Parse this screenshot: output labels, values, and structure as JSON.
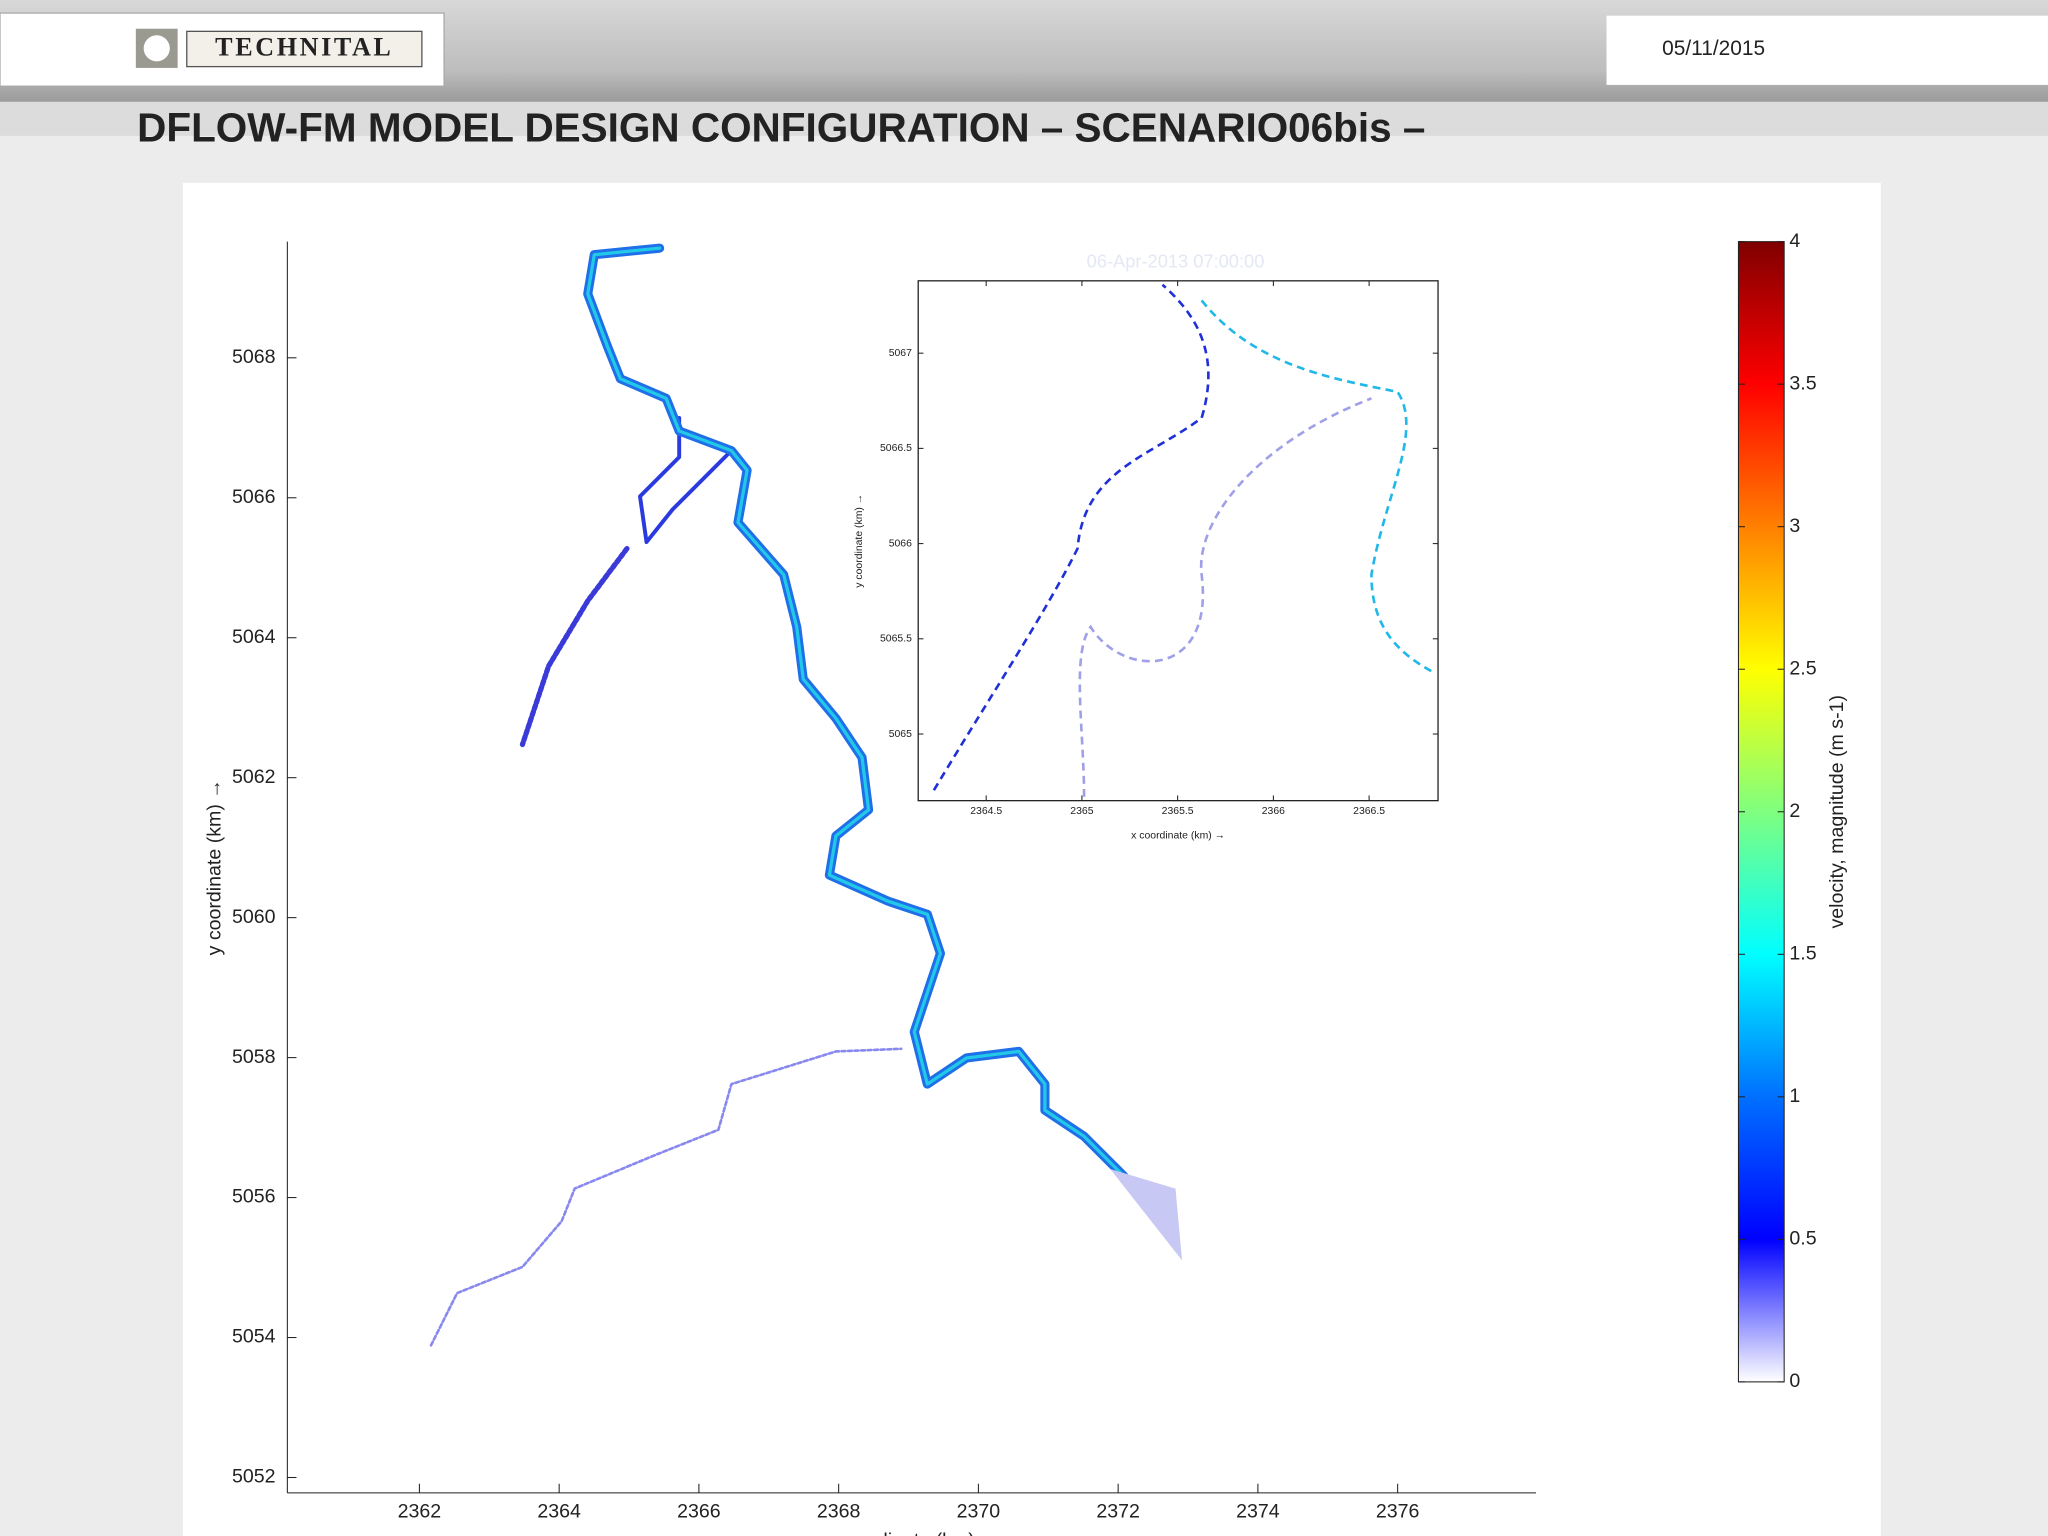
{
  "header": {
    "logo": "TECHNITAL",
    "date": "05/11/2015"
  },
  "title": "DFLOW-FM MODEL DESIGN CONFIGURATION – SCENARIO06bis –",
  "chart_data": [
    {
      "type": "vector",
      "timestamp": "06-Apr-2013 07:00:00",
      "xlabel": "x coordinate (km) →",
      "ylabel": "y coordinate (km) →",
      "xlim": [
        2360.11,
        2377.98
      ],
      "ylim": [
        5051.78,
        5069.66
      ],
      "xticks": [
        2362,
        2364,
        2366,
        2368,
        2370,
        2372,
        2374,
        2376
      ],
      "yticks": [
        5052,
        5054,
        5056,
        5058,
        5060,
        5062,
        5064,
        5066,
        5068
      ]
    },
    {
      "type": "vector",
      "xlabel": "x coordinate (km) →",
      "ylabel": "y coordinate (km) →",
      "xlim": [
        2364.145,
        2366.86
      ],
      "ylim": [
        5064.65,
        5067.38
      ],
      "xticks": [
        2364.5,
        2365,
        2365.5,
        2366,
        2366.5
      ],
      "yticks": [
        5065,
        5065.5,
        5066,
        5066.5,
        5067
      ]
    },
    {
      "type": "colorbar",
      "label": "velocity, magnitude (m s-1)",
      "ylim": [
        0,
        4
      ],
      "yticks": [
        0,
        0.5,
        1,
        1.5,
        2,
        2.5,
        3,
        3.5,
        4
      ],
      "colormap": [
        "#ffffff",
        "#0000ff",
        "#0070ff",
        "#00ffff",
        "#7fff7f",
        "#ffff00",
        "#ff8000",
        "#ff0000",
        "#800000"
      ]
    }
  ]
}
